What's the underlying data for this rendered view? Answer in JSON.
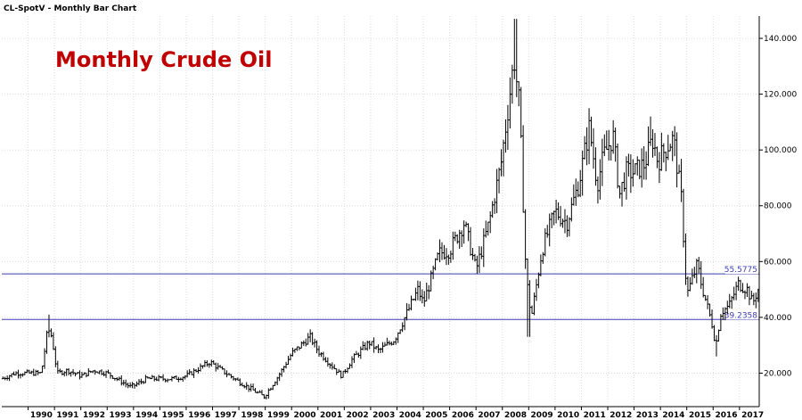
{
  "header": {
    "title": "CL-SpotV - Monthly Bar Chart"
  },
  "chart_data": {
    "type": "bar",
    "title": "Monthly Crude Oil",
    "title_color": "#c00000",
    "bar_color": "#000000",
    "level_color": "#3c3cb4",
    "grid": true,
    "x_range": [
      1989,
      2017.75
    ],
    "y_range": [
      8,
      148
    ],
    "y_ticks": [
      "20.000",
      "40.000",
      "60.000",
      "80.000",
      "100.000",
      "120.000",
      "140.000"
    ],
    "x_ticks": [
      "1990",
      "1991",
      "1992",
      "1993",
      "1994",
      "1995",
      "1996",
      "1997",
      "1998",
      "1999",
      "2000",
      "2001",
      "2002",
      "2003",
      "2004",
      "2005",
      "2006",
      "2007",
      "2008",
      "2009",
      "2010",
      "2011",
      "2012",
      "2013",
      "2014",
      "2015",
      "2016",
      "2017"
    ],
    "levels": [
      {
        "label": "55.5775",
        "value": 55.5775
      },
      {
        "label": "39.2358",
        "value": 39.2358
      }
    ],
    "anchors": [
      [
        1989.0,
        18
      ],
      [
        1989.5,
        20
      ],
      [
        1990.5,
        20
      ],
      [
        1990.75,
        36
      ],
      [
        1990.9,
        33
      ],
      [
        1991.1,
        20
      ],
      [
        1991.5,
        21
      ],
      [
        1992.0,
        19
      ],
      [
        1992.5,
        21
      ],
      [
        1993.0,
        20
      ],
      [
        1993.9,
        15
      ],
      [
        1994.5,
        18
      ],
      [
        1995.0,
        18
      ],
      [
        1995.5,
        18
      ],
      [
        1996.0,
        19
      ],
      [
        1996.9,
        24
      ],
      [
        1997.5,
        20
      ],
      [
        1998.0,
        17
      ],
      [
        1998.95,
        11.5
      ],
      [
        1999.5,
        19
      ],
      [
        2000.0,
        27
      ],
      [
        2000.7,
        33
      ],
      [
        2001.0,
        28
      ],
      [
        2001.9,
        19
      ],
      [
        2002.3,
        25
      ],
      [
        2002.95,
        31
      ],
      [
        2003.3,
        28
      ],
      [
        2003.9,
        32
      ],
      [
        2004.8,
        50
      ],
      [
        2005.0,
        45
      ],
      [
        2005.6,
        63
      ],
      [
        2006.0,
        64
      ],
      [
        2006.55,
        74
      ],
      [
        2007.0,
        57
      ],
      [
        2007.5,
        74
      ],
      [
        2007.95,
        95
      ],
      [
        2008.45,
        133
      ],
      [
        2008.65,
        115
      ],
      [
        2008.9,
        55
      ],
      [
        2009.1,
        40
      ],
      [
        2009.5,
        64
      ],
      [
        2010.0,
        78
      ],
      [
        2010.45,
        74
      ],
      [
        2010.9,
        88
      ],
      [
        2011.3,
        108
      ],
      [
        2011.6,
        88
      ],
      [
        2011.85,
        98
      ],
      [
        2012.2,
        105
      ],
      [
        2012.45,
        84
      ],
      [
        2012.7,
        92
      ],
      [
        2013.0,
        92
      ],
      [
        2013.4,
        95
      ],
      [
        2013.7,
        104
      ],
      [
        2013.9,
        96
      ],
      [
        2014.3,
        102
      ],
      [
        2014.5,
        104
      ],
      [
        2014.8,
        82
      ],
      [
        2015.0,
        48
      ],
      [
        2015.4,
        59
      ],
      [
        2015.55,
        52
      ],
      [
        2015.95,
        38
      ],
      [
        2016.1,
        30
      ],
      [
        2016.3,
        42
      ],
      [
        2016.6,
        44
      ],
      [
        2016.95,
        52
      ],
      [
        2017.3,
        50
      ],
      [
        2017.5,
        45
      ],
      [
        2017.7,
        50
      ]
    ]
  }
}
